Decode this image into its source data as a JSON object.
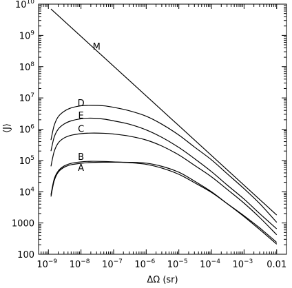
{
  "chart_data": {
    "type": "line",
    "title": "",
    "xlabel": "ΔΩ (sr)",
    "ylabel": "⟨J⟩",
    "xscale": "log",
    "yscale": "log",
    "xlim": [
      5e-10,
      0.02
    ],
    "ylim": [
      100,
      10000000000.0
    ],
    "grid": false,
    "x_ticks": [
      {
        "value": 1e-09,
        "base": "10",
        "exp": "−9"
      },
      {
        "value": 1e-08,
        "base": "10",
        "exp": "−8"
      },
      {
        "value": 1e-07,
        "base": "10",
        "exp": "−7"
      },
      {
        "value": 1e-06,
        "base": "10",
        "exp": "−6"
      },
      {
        "value": 1e-05,
        "base": "10",
        "exp": "−5"
      },
      {
        "value": 0.0001,
        "base": "10",
        "exp": "−4"
      },
      {
        "value": 0.001,
        "base": "10",
        "exp": "−3"
      },
      {
        "value": 0.01,
        "base": "0.01",
        "exp": ""
      }
    ],
    "y_ticks": [
      {
        "value": 100,
        "base": "100",
        "exp": ""
      },
      {
        "value": 1000,
        "base": "1000",
        "exp": ""
      },
      {
        "value": 10000.0,
        "base": "10",
        "exp": "4"
      },
      {
        "value": 100000.0,
        "base": "10",
        "exp": "5"
      },
      {
        "value": 1000000.0,
        "base": "10",
        "exp": "6"
      },
      {
        "value": 10000000.0,
        "base": "10",
        "exp": "7"
      },
      {
        "value": 100000000.0,
        "base": "10",
        "exp": "8"
      },
      {
        "value": 1000000000.0,
        "base": "10",
        "exp": "9"
      },
      {
        "value": 10000000000.0,
        "base": "10",
        "exp": "10"
      }
    ],
    "series": [
      {
        "name": "M",
        "label_at": [
          3e-08,
          450000000.0
        ],
        "points": [
          [
            1.2e-09,
            7000000000.0
          ],
          [
            0.01,
            1800
          ]
        ]
      },
      {
        "name": "D",
        "label_at": [
          1e-08,
          7000000.0
        ],
        "points": [
          [
            1.2e-09,
            450000.0
          ],
          [
            1.5e-09,
            1300000.0
          ],
          [
            2e-09,
            2500000.0
          ],
          [
            3e-09,
            3700000.0
          ],
          [
            5e-09,
            4800000.0
          ],
          [
            1e-08,
            5600000.0
          ],
          [
            2e-08,
            5800000.0
          ],
          [
            5e-08,
            5600000.0
          ],
          [
            1e-07,
            5000000.0
          ],
          [
            3e-07,
            3900000.0
          ],
          [
            1e-06,
            2600000.0
          ],
          [
            3e-06,
            1450000.0
          ],
          [
            1e-05,
            650000.0
          ],
          [
            3e-05,
            270000.0
          ],
          [
            0.0001,
            105000.0
          ],
          [
            0.0003,
            38000.0
          ],
          [
            0.001,
            12500.0
          ],
          [
            0.003,
            4200
          ],
          [
            0.01,
            1050
          ]
        ]
      },
      {
        "name": "E",
        "label_at": [
          1e-08,
          2800000.0
        ],
        "points": [
          [
            1.2e-09,
            200000.0
          ],
          [
            1.5e-09,
            550000.0
          ],
          [
            2e-09,
            1000000.0
          ],
          [
            3e-09,
            1450000.0
          ],
          [
            5e-09,
            1850000.0
          ],
          [
            1e-08,
            2150000.0
          ],
          [
            2e-08,
            2250000.0
          ],
          [
            5e-08,
            2100000.0
          ],
          [
            1e-07,
            1850000.0
          ],
          [
            3e-07,
            1450000.0
          ],
          [
            1e-06,
            950000.0
          ],
          [
            3e-06,
            550000.0
          ],
          [
            1e-05,
            260000.0
          ],
          [
            3e-05,
            115000.0
          ],
          [
            0.0001,
            44000.0
          ],
          [
            0.0003,
            16500.0
          ],
          [
            0.001,
            5800
          ],
          [
            0.003,
            2000
          ],
          [
            0.01,
            650
          ]
        ]
      },
      {
        "name": "C",
        "label_at": [
          1e-08,
          1050000.0
        ],
        "points": [
          [
            1.2e-09,
            65000.0
          ],
          [
            1.5e-09,
            190000.0
          ],
          [
            2e-09,
            360000.0
          ],
          [
            3e-09,
            520000.0
          ],
          [
            5e-09,
            640000.0
          ],
          [
            1e-08,
            720000.0
          ],
          [
            2e-08,
            750000.0
          ],
          [
            5e-08,
            740000.0
          ],
          [
            1e-07,
            700000.0
          ],
          [
            3e-07,
            600000.0
          ],
          [
            1e-06,
            450000.0
          ],
          [
            3e-06,
            290000.0
          ],
          [
            1e-05,
            150000.0
          ],
          [
            3e-05,
            70000.0
          ],
          [
            0.0001,
            30000.0
          ],
          [
            0.0003,
            12000.0
          ],
          [
            0.001,
            4300
          ],
          [
            0.003,
            1500
          ],
          [
            0.01,
            420
          ]
        ]
      },
      {
        "name": "B",
        "label_at": [
          1e-08,
          135000.0
        ],
        "points": [
          [
            1.2e-09,
            8000.0
          ],
          [
            1.5e-09,
            25000.0
          ],
          [
            2e-09,
            46000.0
          ],
          [
            3e-09,
            66000.0
          ],
          [
            5e-09,
            81000.0
          ],
          [
            1e-08,
            90000.0
          ],
          [
            2e-08,
            94000.0
          ],
          [
            5e-08,
            93000.0
          ],
          [
            1e-07,
            90000.0
          ],
          [
            3e-07,
            85000.0
          ],
          [
            1e-06,
            75000.0
          ],
          [
            3e-06,
            57000.0
          ],
          [
            1e-05,
            36000.0
          ],
          [
            3e-05,
            19500.0
          ],
          [
            0.0001,
            9500
          ],
          [
            0.0003,
            4200
          ],
          [
            0.001,
            1700
          ],
          [
            0.003,
            700
          ],
          [
            0.01,
            240
          ]
        ]
      },
      {
        "name": "A",
        "label_at": [
          1e-08,
          60000.0
        ],
        "points": [
          [
            1.2e-09,
            7000.0
          ],
          [
            1.5e-09,
            22000.0
          ],
          [
            2e-09,
            42000.0
          ],
          [
            3e-09,
            60000.0
          ],
          [
            5e-09,
            73000.0
          ],
          [
            1e-08,
            81000.0
          ],
          [
            2e-08,
            86000.0
          ],
          [
            5e-08,
            88000.0
          ],
          [
            1e-07,
            88000.0
          ],
          [
            3e-07,
            87000.0
          ],
          [
            1e-06,
            82000.0
          ],
          [
            3e-06,
            65000.0
          ],
          [
            1e-05,
            42000.0
          ],
          [
            3e-05,
            22000.0
          ],
          [
            0.0001,
            10000.0
          ],
          [
            0.0003,
            4200
          ],
          [
            0.001,
            1600
          ],
          [
            0.003,
            620
          ],
          [
            0.01,
            210
          ]
        ]
      }
    ]
  }
}
